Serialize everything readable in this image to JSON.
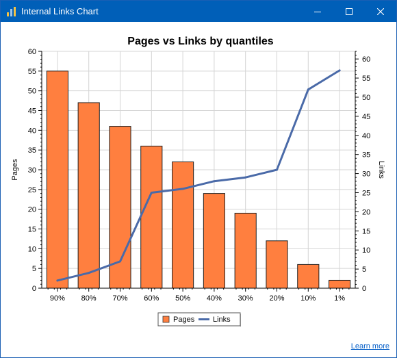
{
  "window": {
    "title": "Internal Links Chart",
    "accent": "#005fb8"
  },
  "icons": {
    "app": "bar-chart-icon",
    "minimize": "minimize-icon",
    "maximize": "maximize-icon",
    "close": "close-icon"
  },
  "footer": {
    "learn_more": "Learn more"
  },
  "chart_data": {
    "type": "bar",
    "title": "Pages vs Links by quantiles",
    "ylabel": "Pages",
    "y2label": "Links",
    "categories": [
      "90%",
      "80%",
      "70%",
      "60%",
      "50%",
      "40%",
      "30%",
      "20%",
      "10%",
      "1%"
    ],
    "series": [
      {
        "name": "Pages",
        "type": "bar",
        "axis": "left",
        "color": "#ff7f3f",
        "values": [
          55,
          47,
          41,
          36,
          32,
          24,
          19,
          12,
          6,
          2
        ]
      },
      {
        "name": "Links",
        "type": "line",
        "axis": "right",
        "color": "#4a6aa8",
        "values": [
          2,
          4,
          7,
          25,
          26,
          28,
          29,
          31,
          52,
          57
        ]
      }
    ],
    "ylim": [
      0,
      60
    ],
    "y2lim": [
      0,
      62
    ],
    "yticks": [
      0,
      5,
      10,
      15,
      20,
      25,
      30,
      35,
      40,
      45,
      50,
      55,
      60
    ],
    "y2ticks": [
      0,
      5,
      10,
      15,
      20,
      25,
      30,
      35,
      40,
      45,
      50,
      55,
      60
    ],
    "grid": true,
    "legend": "bottom-center"
  }
}
